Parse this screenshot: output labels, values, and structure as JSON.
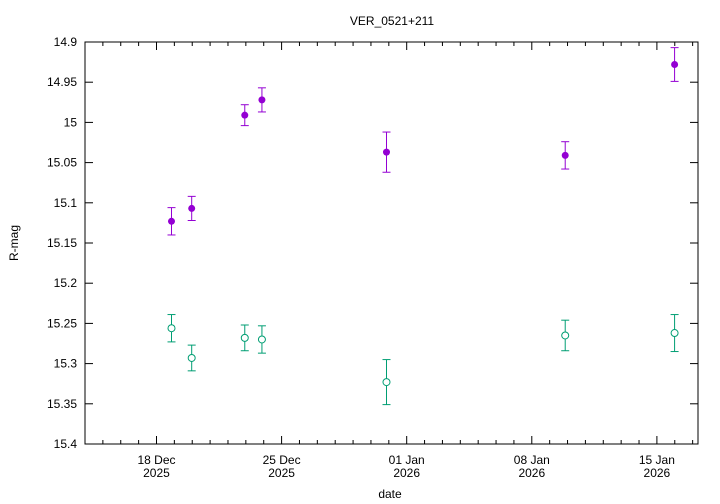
{
  "chart_data": {
    "type": "scatter",
    "title": "VER_0521+211",
    "xlabel": "date",
    "ylabel": "R-mag",
    "x_unit": "days since 18 Dec 2025",
    "xlim": [
      -4.0,
      30.3
    ],
    "ylim": [
      14.9,
      15.4
    ],
    "y_reversed": true,
    "grid": false,
    "legend": "none",
    "yticks": [
      14.9,
      14.95,
      15,
      15.05,
      15.1,
      15.15,
      15.2,
      15.25,
      15.3,
      15.35,
      15.4
    ],
    "ytick_labels": [
      "14.9",
      "14.95",
      "15",
      "15.05",
      "15.1",
      "15.15",
      "15.2",
      "15.25",
      "15.3",
      "15.35",
      "15.4"
    ],
    "xticks": [
      0,
      7,
      14,
      21,
      28
    ],
    "xtick_labels": [
      [
        "18 Dec",
        "2025"
      ],
      [
        "25 Dec",
        "2025"
      ],
      [
        "01 Jan",
        "2026"
      ],
      [
        "08 Jan",
        "2026"
      ],
      [
        "15 Jan",
        "2026"
      ]
    ],
    "series": [
      {
        "name": "filled",
        "color": "#9400d3",
        "marker": "filled-circle",
        "x": [
          0.84,
          1.97,
          4.94,
          5.9,
          12.87,
          22.87,
          28.99
        ],
        "y": [
          15.123,
          15.107,
          14.991,
          14.972,
          15.037,
          15.041,
          14.928
        ],
        "err": [
          0.017,
          0.015,
          0.013,
          0.015,
          0.025,
          0.017,
          0.021
        ]
      },
      {
        "name": "open",
        "color": "#009e73",
        "marker": "open-circle",
        "x": [
          0.84,
          1.97,
          4.94,
          5.9,
          12.87,
          22.87,
          28.99
        ],
        "y": [
          15.256,
          15.293,
          15.268,
          15.27,
          15.323,
          15.265,
          15.262
        ],
        "err": [
          0.017,
          0.016,
          0.016,
          0.017,
          0.028,
          0.019,
          0.023
        ]
      }
    ]
  }
}
